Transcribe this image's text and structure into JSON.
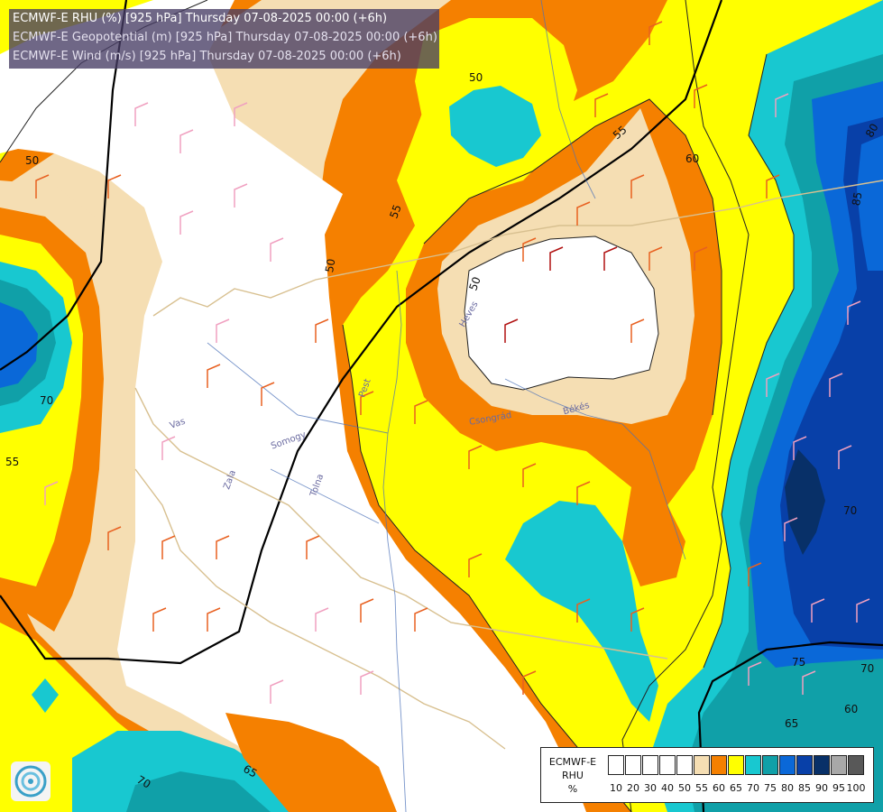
{
  "title": {
    "line1": "ECMWF-E RHU (%) [925 hPa] Thursday 07-08-2025 00:00 (+6h)",
    "line2": "ECMWF-E Geopotential (m) [925 hPa] Thursday 07-08-2025 00:00 (+6h)",
    "line3": "ECMWF-E Wind (m/s) [925 hPa] Thursday 07-08-2025 00:00 (+6h)"
  },
  "legend": {
    "title_line1": "ECMWF-E",
    "title_line2": "RHU",
    "title_line3": "%",
    "swatches": [
      {
        "value": "10",
        "color": "#ffffff"
      },
      {
        "value": "20",
        "color": "#ffffff"
      },
      {
        "value": "30",
        "color": "#ffffff"
      },
      {
        "value": "40",
        "color": "#ffffff"
      },
      {
        "value": "50",
        "color": "#ffffff"
      },
      {
        "value": "55",
        "color": "#f5deb3"
      },
      {
        "value": "60",
        "color": "#f58000"
      },
      {
        "value": "65",
        "color": "#ffff00"
      },
      {
        "value": "70",
        "color": "#18c8d0"
      },
      {
        "value": "75",
        "color": "#10a0a8"
      },
      {
        "value": "80",
        "color": "#0a68d8"
      },
      {
        "value": "85",
        "color": "#0840a8"
      },
      {
        "value": "90",
        "color": "#083068"
      },
      {
        "value": "95",
        "color": "#a8a8a8"
      },
      {
        "value": "100",
        "color": "#585858"
      }
    ]
  },
  "contour_labels": [
    "50",
    "50",
    "55",
    "50",
    "55",
    "50",
    "60",
    "80",
    "85",
    "70",
    "55",
    "70",
    "75",
    "70",
    "65",
    "60",
    "70",
    "65"
  ],
  "place_labels": [
    "Vas",
    "Zala",
    "Somogy",
    "Tolna",
    "Pest",
    "Heves",
    "Békés",
    "Csongrád"
  ],
  "colors": {
    "lt50": "#ffffff",
    "c55": "#f5deb3",
    "c60": "#f58000",
    "c65": "#ffff00",
    "c70": "#18c8d0",
    "c75": "#10a0a8",
    "c80": "#0a68d8",
    "c85": "#0840a8",
    "c90": "#083068"
  }
}
